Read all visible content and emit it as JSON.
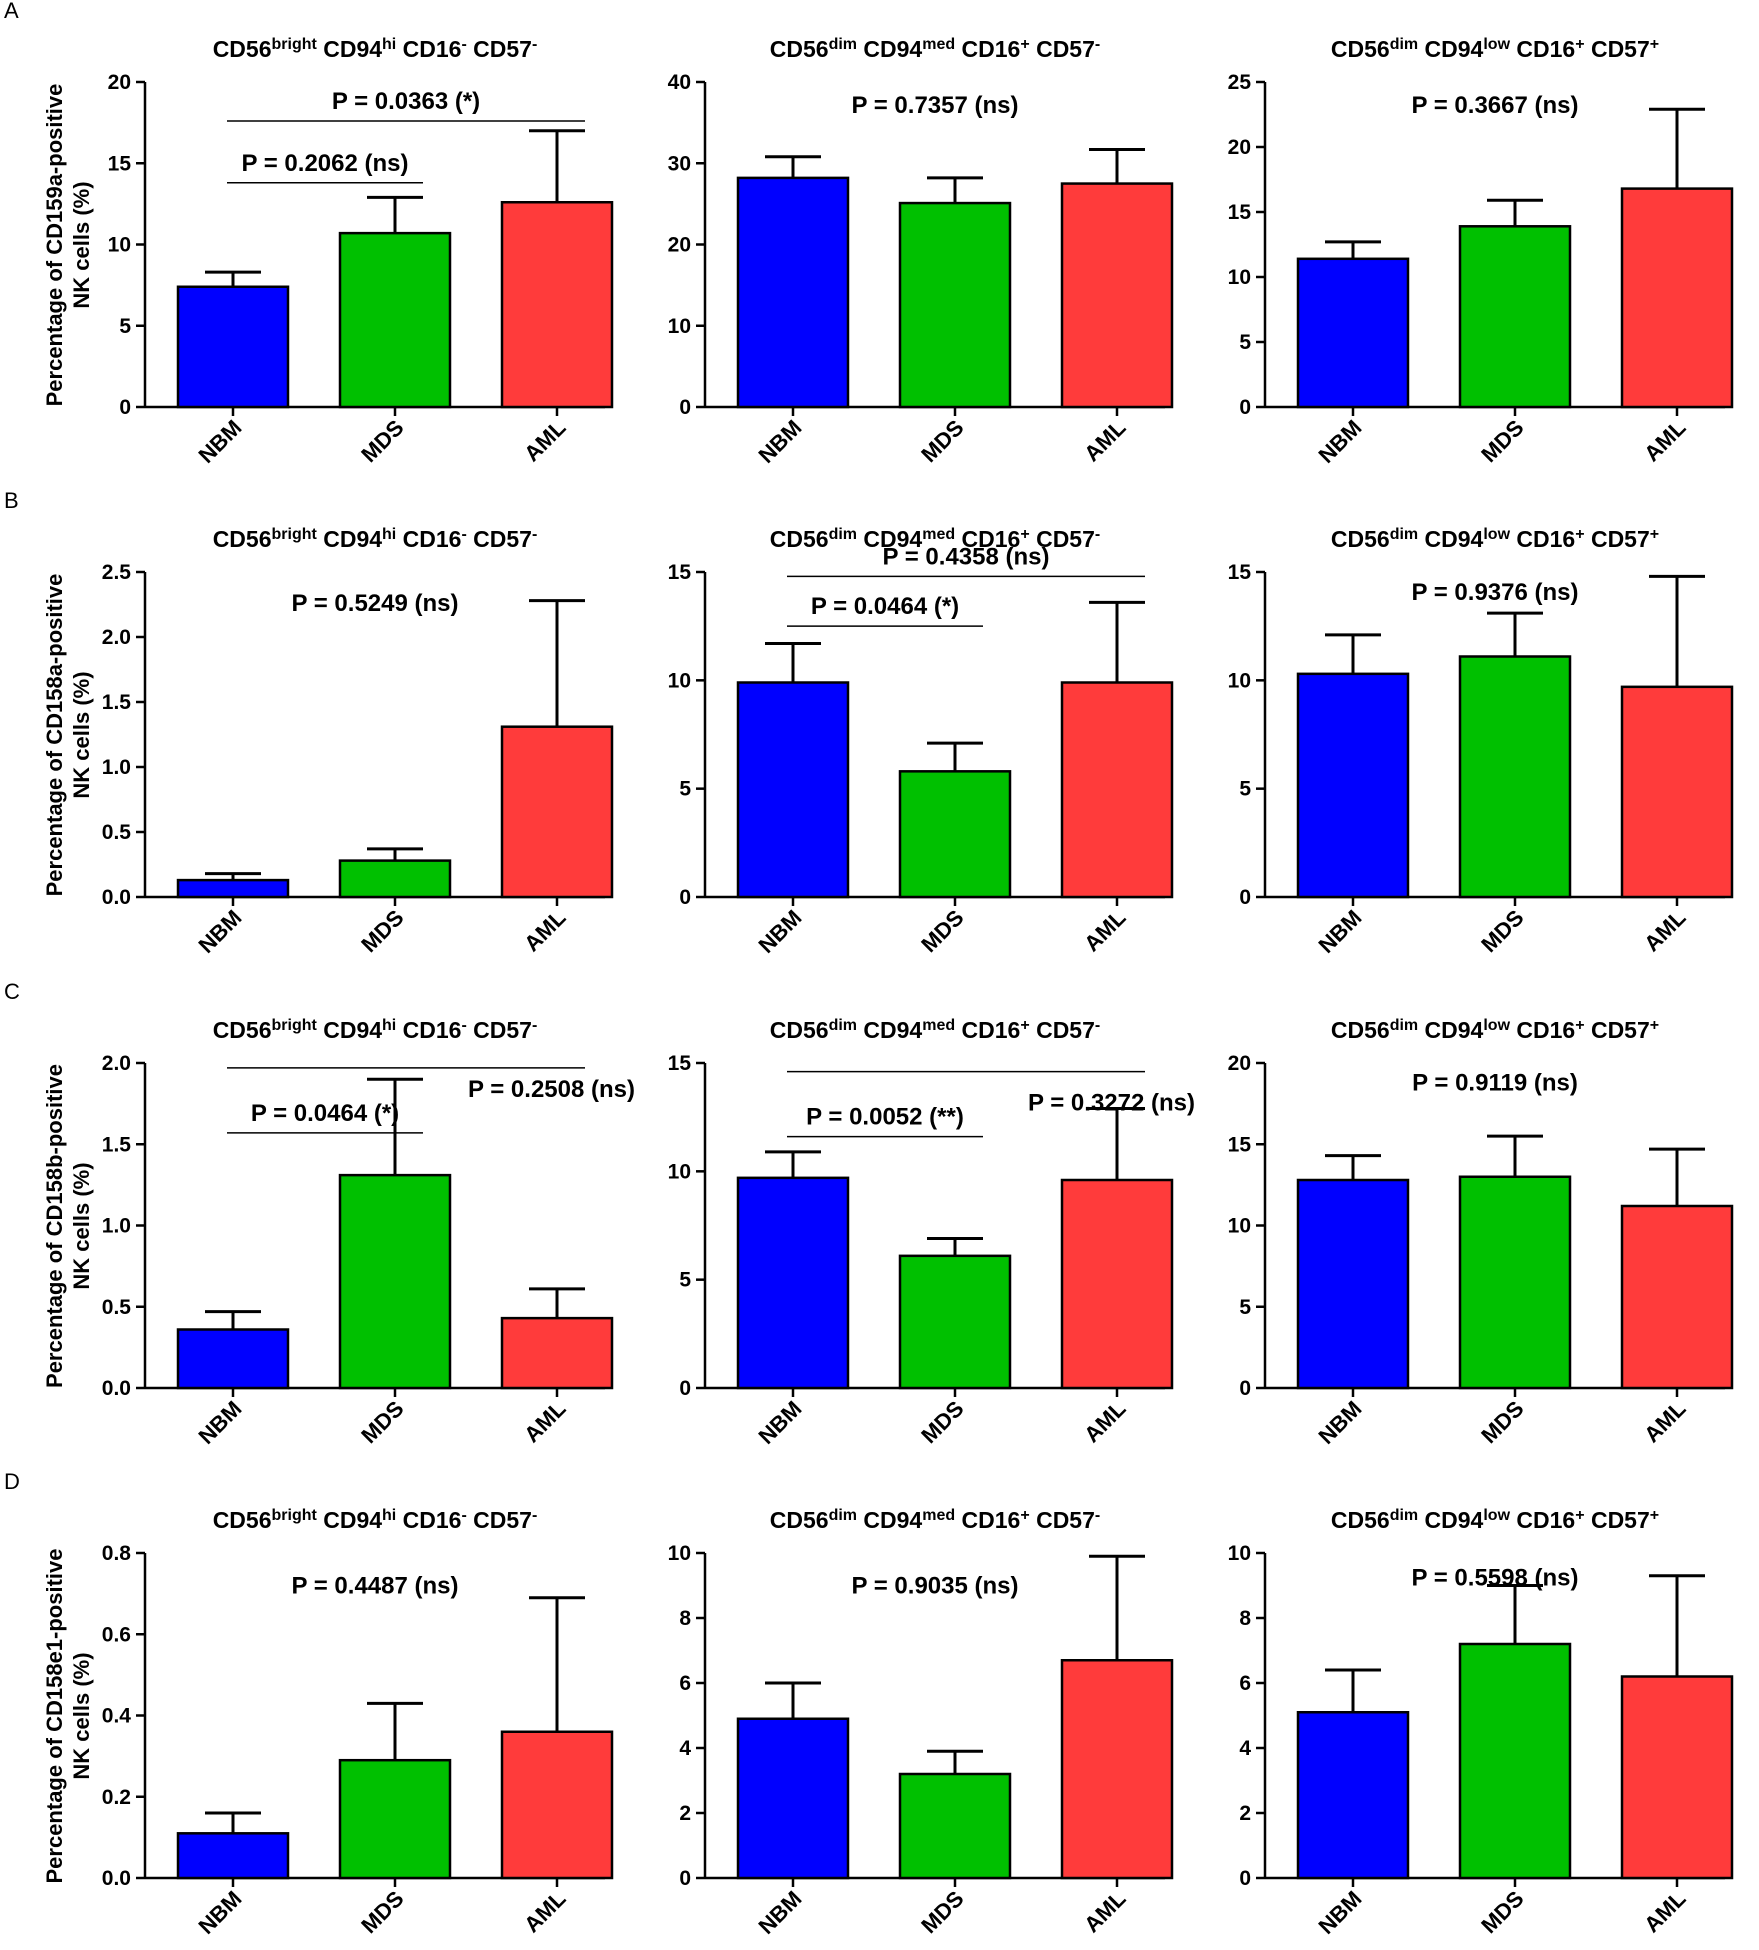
{
  "figure": {
    "y_axis_unit": "(%)",
    "y_axis_suffix": "NK cells (%)",
    "groups": [
      "NBM",
      "MDS",
      "AML"
    ],
    "colors": {
      "NBM": "#0000ff",
      "MDS": "#00c000",
      "AML": "#ff3b3b"
    },
    "subsets": [
      {
        "name": "CD56bright CD94hi CD16- CD57-",
        "parts": [
          [
            "CD56",
            "bright"
          ],
          [
            "CD94",
            "hi"
          ],
          [
            "CD16",
            "-"
          ],
          [
            "CD57",
            "-"
          ]
        ]
      },
      {
        "name": "CD56dim CD94med CD16+ CD57-",
        "parts": [
          [
            "CD56",
            "dim"
          ],
          [
            "CD94",
            "med"
          ],
          [
            "CD16",
            "+"
          ],
          [
            "CD57",
            "-"
          ]
        ]
      },
      {
        "name": "CD56dim CD94low CD16+ CD57+",
        "parts": [
          [
            "CD56",
            "dim"
          ],
          [
            "CD94",
            "low"
          ],
          [
            "CD16",
            "+"
          ],
          [
            "CD57",
            "+"
          ]
        ]
      }
    ]
  },
  "chart_data": [
    {
      "type": "bar",
      "panel_row": "A",
      "ylabel": "Percentage of CD159a-positive NK cells (%)",
      "ylabel_line1": "Percentage of CD159a-positive",
      "ylabel_line2": "NK cells (%)",
      "charts": [
        {
          "title": "CD56bright CD94hi CD16- CD57-",
          "categories": [
            "NBM",
            "MDS",
            "AML"
          ],
          "values": [
            7.4,
            10.7,
            12.6
          ],
          "errors": [
            0.9,
            2.2,
            4.4
          ],
          "ylim": [
            0,
            20
          ],
          "yticks": [
            0,
            5,
            10,
            15,
            20
          ],
          "tick_labels": [
            "0",
            "5",
            "10",
            "15",
            "20"
          ],
          "annotations": [
            {
              "text": "P = 0.0363 (*)",
              "from": "NBM",
              "to": "AML",
              "y": 17.6
            },
            {
              "text": "P = 0.2062 (ns)",
              "from": "NBM",
              "to": "MDS",
              "y": 13.8
            }
          ]
        },
        {
          "title": "CD56dim CD94med CD16+ CD57-",
          "categories": [
            "NBM",
            "MDS",
            "AML"
          ],
          "values": [
            28.2,
            25.1,
            27.5
          ],
          "errors": [
            2.6,
            3.1,
            4.2
          ],
          "ylim": [
            0,
            40
          ],
          "yticks": [
            0,
            10,
            20,
            30,
            40
          ],
          "tick_labels": [
            "0",
            "10",
            "20",
            "30",
            "40"
          ],
          "annotations": [
            {
              "text": "P = 0.7357 (ns)",
              "y": 36.2
            }
          ]
        },
        {
          "title": "CD56dim CD94low CD16+ CD57+",
          "categories": [
            "NBM",
            "MDS",
            "AML"
          ],
          "values": [
            11.4,
            13.9,
            16.8
          ],
          "errors": [
            1.3,
            2.0,
            6.1
          ],
          "ylim": [
            0,
            25
          ],
          "yticks": [
            0,
            5,
            10,
            15,
            20,
            25
          ],
          "tick_labels": [
            "0",
            "5",
            "10",
            "15",
            "20",
            "25"
          ],
          "annotations": [
            {
              "text": "P = 0.3667 (ns)",
              "y": 22.6
            }
          ]
        }
      ]
    },
    {
      "type": "bar",
      "panel_row": "B",
      "ylabel": "Percentage of CD158a-positive NK cells (%)",
      "ylabel_line1": "Percentage of CD158a-positive",
      "ylabel_line2": "NK cells (%)",
      "charts": [
        {
          "title": "CD56bright CD94hi CD16- CD57-",
          "categories": [
            "NBM",
            "MDS",
            "AML"
          ],
          "values": [
            0.13,
            0.28,
            1.31
          ],
          "errors": [
            0.05,
            0.09,
            0.97
          ],
          "ylim": [
            0,
            2.5
          ],
          "yticks": [
            0,
            0.5,
            1,
            1.5,
            2,
            2.5
          ],
          "tick_labels": [
            "0.0",
            "0.5",
            "1.0",
            "1.5",
            "2.0",
            "2.5"
          ],
          "annotations": [
            {
              "text": "P = 0.5249 (ns)",
              "y": 2.2
            }
          ]
        },
        {
          "title": "CD56dim CD94med CD16+ CD57-",
          "categories": [
            "NBM",
            "MDS",
            "AML"
          ],
          "values": [
            9.9,
            5.8,
            9.9
          ],
          "errors": [
            1.8,
            1.3,
            3.7
          ],
          "ylim": [
            0,
            15
          ],
          "yticks": [
            0,
            5,
            10,
            15
          ],
          "tick_labels": [
            "0",
            "5",
            "10",
            "15"
          ],
          "annotations": [
            {
              "text": "P = 0.4358 (ns)",
              "from": "NBM",
              "to": "AML",
              "y": 14.8
            },
            {
              "text": "P = 0.0464 (*)",
              "from": "NBM",
              "to": "MDS",
              "y": 12.5
            }
          ]
        },
        {
          "title": "CD56dim CD94low CD16+ CD57+",
          "categories": [
            "NBM",
            "MDS",
            "AML"
          ],
          "values": [
            10.3,
            11.1,
            9.7
          ],
          "errors": [
            1.8,
            2.0,
            5.1
          ],
          "ylim": [
            0,
            15
          ],
          "yticks": [
            0,
            5,
            10,
            15
          ],
          "tick_labels": [
            "0",
            "5",
            "10",
            "15"
          ],
          "annotations": [
            {
              "text": "P = 0.9376 (ns)",
              "y": 13.7
            }
          ]
        }
      ]
    },
    {
      "type": "bar",
      "panel_row": "C",
      "ylabel": "Percentage of CD158b-positive NK cells (%)",
      "ylabel_line1": "Percentage of CD158b-positive",
      "ylabel_line2": "NK cells (%)",
      "charts": [
        {
          "title": "CD56bright CD94hi CD16- CD57-",
          "categories": [
            "NBM",
            "MDS",
            "AML"
          ],
          "values": [
            0.36,
            1.31,
            0.43
          ],
          "errors": [
            0.11,
            0.59,
            0.18
          ],
          "ylim": [
            0,
            2
          ],
          "yticks": [
            0,
            0.5,
            1,
            1.5,
            2
          ],
          "tick_labels": [
            "0.0",
            "0.5",
            "1.0",
            "1.5",
            "2.0"
          ],
          "annotations": [
            {
              "text": "P = 0.2508 (ns)",
              "from": "NBM",
              "to": "AML",
              "y": 1.97,
              "label_x": "right",
              "label_y": 1.79
            },
            {
              "text": "P = 0.0464 (*)",
              "from": "NBM",
              "to": "MDS",
              "y": 1.57
            }
          ]
        },
        {
          "title": "CD56dim CD94med CD16+ CD57-",
          "categories": [
            "NBM",
            "MDS",
            "AML"
          ],
          "values": [
            9.7,
            6.1,
            9.6
          ],
          "errors": [
            1.2,
            0.8,
            3.3
          ],
          "ylim": [
            0,
            15
          ],
          "yticks": [
            0,
            5,
            10,
            15
          ],
          "tick_labels": [
            "0",
            "5",
            "10",
            "15"
          ],
          "annotations": [
            {
              "text": "P = 0.3272 (ns)",
              "from": "NBM",
              "to": "AML",
              "y": 14.6,
              "label_x": "right",
              "label_y": 12.8
            },
            {
              "text": "P = 0.0052 (**)",
              "from": "NBM",
              "to": "MDS",
              "y": 11.6
            }
          ]
        },
        {
          "title": "CD56dim CD94low CD16+ CD57+",
          "categories": [
            "NBM",
            "MDS",
            "AML"
          ],
          "values": [
            12.8,
            13.0,
            11.2
          ],
          "errors": [
            1.5,
            2.5,
            3.5
          ],
          "ylim": [
            0,
            20
          ],
          "yticks": [
            0,
            5,
            10,
            15,
            20
          ],
          "tick_labels": [
            "0",
            "5",
            "10",
            "15",
            "20"
          ],
          "annotations": [
            {
              "text": "P = 0.9119 (ns)",
              "y": 18.3
            }
          ]
        }
      ]
    },
    {
      "type": "bar",
      "panel_row": "D",
      "ylabel": "Percentage of CD158e1-positive NK cells (%)",
      "ylabel_line1": "Percentage of CD158e1-positive",
      "ylabel_line2": "NK cells (%)",
      "charts": [
        {
          "title": "CD56bright CD94hi CD16- CD57-",
          "categories": [
            "NBM",
            "MDS",
            "AML"
          ],
          "values": [
            0.11,
            0.29,
            0.36
          ],
          "errors": [
            0.05,
            0.14,
            0.33
          ],
          "ylim": [
            0,
            0.8
          ],
          "yticks": [
            0,
            0.2,
            0.4,
            0.6,
            0.8
          ],
          "tick_labels": [
            "0.0",
            "0.2",
            "0.4",
            "0.6",
            "0.8"
          ],
          "annotations": [
            {
              "text": "P = 0.4487 (ns)",
              "y": 0.7
            }
          ]
        },
        {
          "title": "CD56dim CD94med CD16+ CD57-",
          "categories": [
            "NBM",
            "MDS",
            "AML"
          ],
          "values": [
            4.9,
            3.2,
            6.7
          ],
          "errors": [
            1.1,
            0.7,
            3.2
          ],
          "ylim": [
            0,
            10
          ],
          "yticks": [
            0,
            2,
            4,
            6,
            8,
            10
          ],
          "tick_labels": [
            "0",
            "2",
            "4",
            "6",
            "8",
            "10"
          ],
          "annotations": [
            {
              "text": "P = 0.9035 (ns)",
              "y": 8.75
            }
          ]
        },
        {
          "title": "CD56dim CD94low CD16+ CD57+",
          "categories": [
            "NBM",
            "MDS",
            "AML"
          ],
          "values": [
            5.1,
            7.2,
            6.2
          ],
          "errors": [
            1.3,
            1.8,
            3.1
          ],
          "ylim": [
            0,
            10
          ],
          "yticks": [
            0,
            2,
            4,
            6,
            8,
            10
          ],
          "tick_labels": [
            "0",
            "2",
            "4",
            "6",
            "8",
            "10"
          ],
          "annotations": [
            {
              "text": "P = 0.5598 (ns)",
              "y": 9.0
            }
          ]
        }
      ]
    }
  ]
}
